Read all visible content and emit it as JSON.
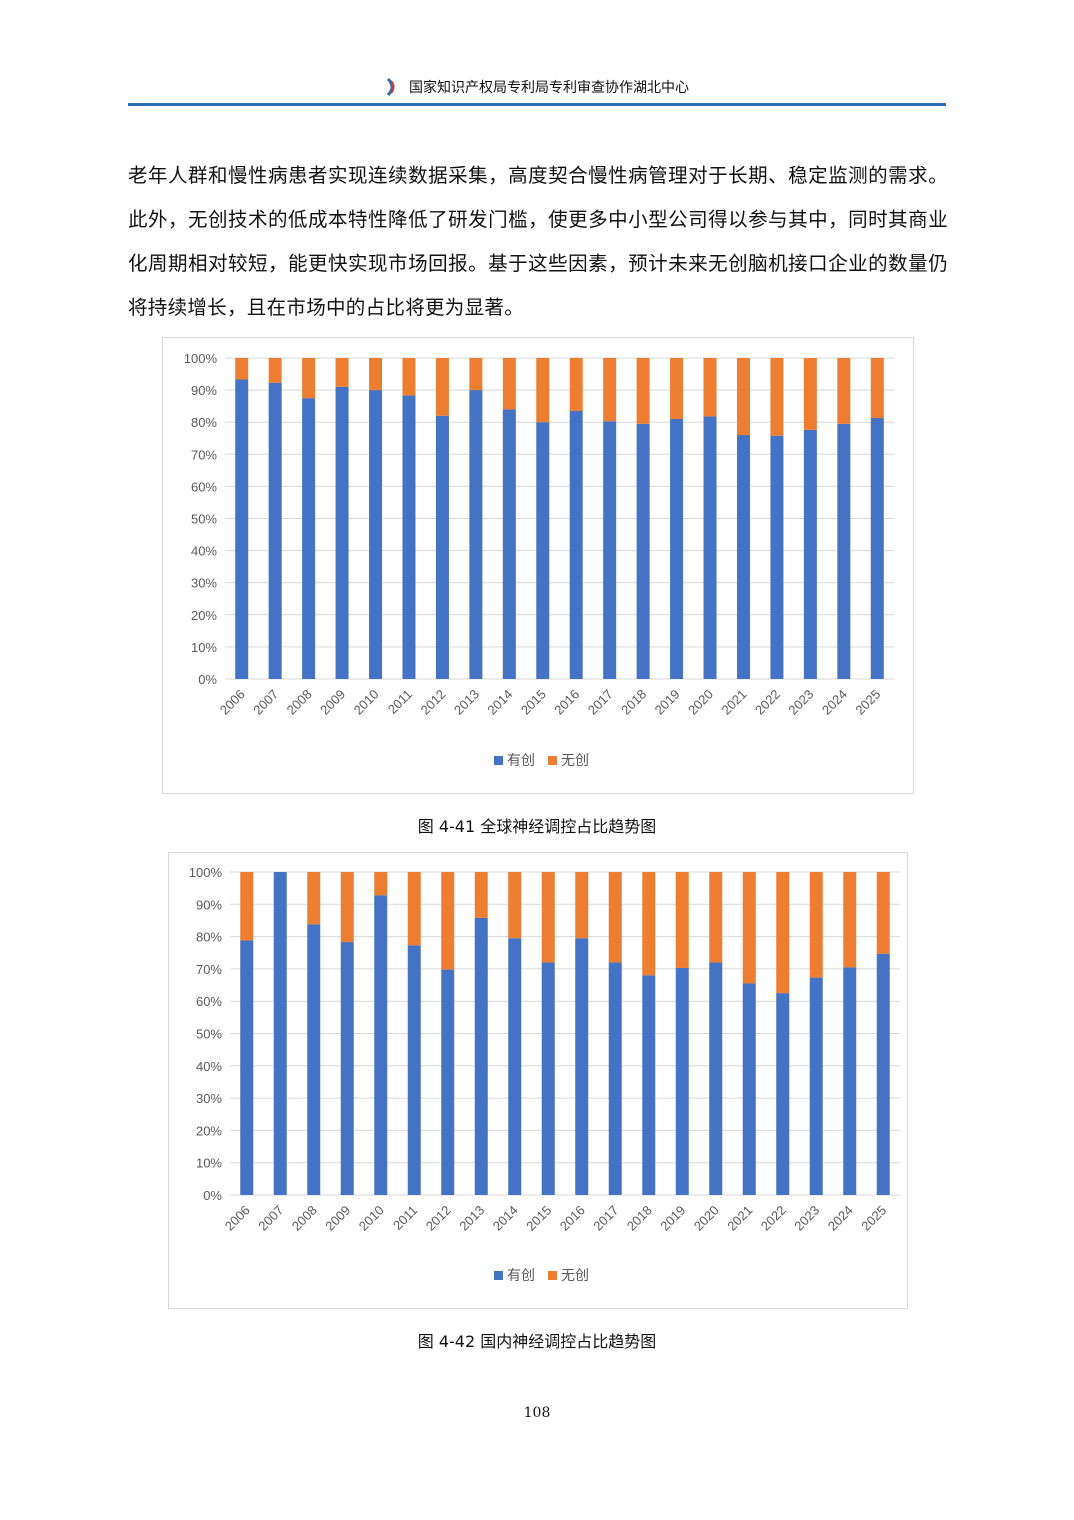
{
  "header": {
    "title": "国家知识产权局专利局专利审查协作湖北中心"
  },
  "body_text": "老年人群和慢性病患者实现连续数据采集，高度契合慢性病管理对于长期、稳定监测的需求。此外，无创技术的低成本特性降低了研发门槛，使更多中小型公司得以参与其中，同时其商业化周期相对较短，能更快实现市场回报。基于这些因素，预计未来无创脑机接口企业的数量仍将持续增长，且在市场中的占比将更为显著。",
  "colors": {
    "invasive": "#4472c4",
    "noninvasive": "#ed7d31",
    "rule": "#2a6fb5"
  },
  "chart_data": [
    {
      "type": "bar",
      "stacked": true,
      "caption": "图 4-41  全球神经调控占比趋势图",
      "categories": [
        "2006",
        "2007",
        "2008",
        "2009",
        "2010",
        "2011",
        "2012",
        "2013",
        "2014",
        "2015",
        "2016",
        "2017",
        "2018",
        "2019",
        "2020",
        "2021",
        "2022",
        "2023",
        "2024",
        "2025"
      ],
      "yticks": [
        "0%",
        "10%",
        "20%",
        "30%",
        "40%",
        "50%",
        "60%",
        "70%",
        "80%",
        "90%",
        "100%"
      ],
      "ylim": [
        0,
        100
      ],
      "legend_position": "bottom",
      "series": [
        {
          "name": "有创",
          "values": [
            93.3,
            92.3,
            87.5,
            91,
            90,
            88.3,
            82,
            90,
            84,
            80,
            83.5,
            80.3,
            79.5,
            81,
            81.8,
            76,
            75.8,
            77.6,
            79.5,
            81.3
          ]
        },
        {
          "name": "无创",
          "values": [
            6.7,
            7.7,
            12.5,
            9,
            10,
            11.7,
            18,
            10,
            16,
            20,
            16.5,
            19.7,
            20.5,
            19,
            18.2,
            24,
            24.2,
            22.4,
            20.5,
            18.7
          ]
        }
      ]
    },
    {
      "type": "bar",
      "stacked": true,
      "caption": "图 4-42  国内神经调控占比趋势图",
      "categories": [
        "2006",
        "2007",
        "2008",
        "2009",
        "2010",
        "2011",
        "2012",
        "2013",
        "2014",
        "2015",
        "2016",
        "2017",
        "2018",
        "2019",
        "2020",
        "2021",
        "2022",
        "2023",
        "2024",
        "2025"
      ],
      "yticks": [
        "0%",
        "10%",
        "20%",
        "30%",
        "40%",
        "50%",
        "60%",
        "70%",
        "80%",
        "90%",
        "100%"
      ],
      "ylim": [
        0,
        100
      ],
      "legend_position": "bottom",
      "series": [
        {
          "name": "有创",
          "values": [
            78.8,
            100,
            83.8,
            78.3,
            92.8,
            77.3,
            69.8,
            85.8,
            79.5,
            72,
            79.5,
            72,
            68,
            70.3,
            72,
            65.5,
            62.5,
            67.3,
            70.5,
            74.7
          ]
        },
        {
          "name": "无创",
          "values": [
            21.2,
            0,
            16.2,
            21.7,
            7.2,
            22.7,
            30.2,
            14.2,
            20.5,
            28,
            20.5,
            28,
            32,
            29.7,
            28,
            34.5,
            37.5,
            32.7,
            29.5,
            25.3
          ]
        }
      ]
    }
  ],
  "page_number": "108"
}
